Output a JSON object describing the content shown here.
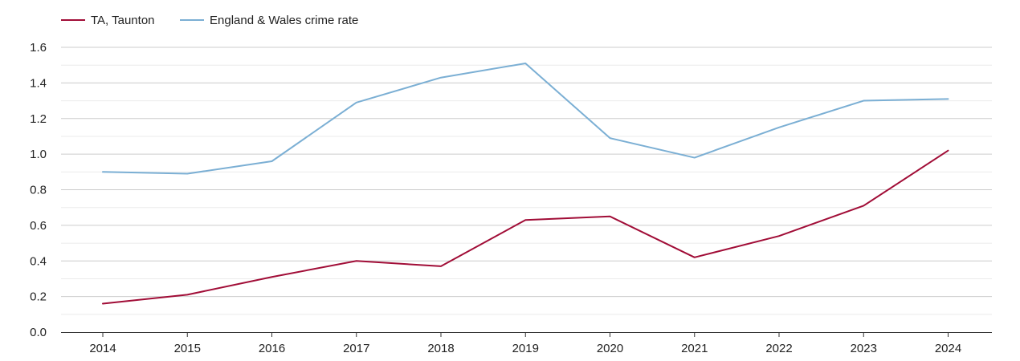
{
  "chart_data": {
    "type": "line",
    "title": "",
    "xlabel": "",
    "ylabel": "",
    "x": [
      "2014",
      "2015",
      "2016",
      "2017",
      "2018",
      "2019",
      "2020",
      "2021",
      "2022",
      "2023",
      "2024"
    ],
    "ylim": [
      0,
      1.6
    ],
    "yticks": [
      "0.0",
      "0.2",
      "0.4",
      "0.6",
      "0.8",
      "1.0",
      "1.2",
      "1.4",
      "1.6"
    ],
    "grid": true,
    "legend_position": "top-left",
    "series": [
      {
        "name": "TA, Taunton",
        "color": "#a10d37",
        "values": [
          0.16,
          0.21,
          0.31,
          0.4,
          0.37,
          0.63,
          0.65,
          0.42,
          0.54,
          0.71,
          1.02
        ]
      },
      {
        "name": "England & Wales crime rate",
        "color": "#7bafd4",
        "values": [
          0.9,
          0.89,
          0.96,
          1.29,
          1.43,
          1.51,
          1.09,
          0.98,
          1.15,
          1.3,
          1.31
        ]
      }
    ]
  }
}
